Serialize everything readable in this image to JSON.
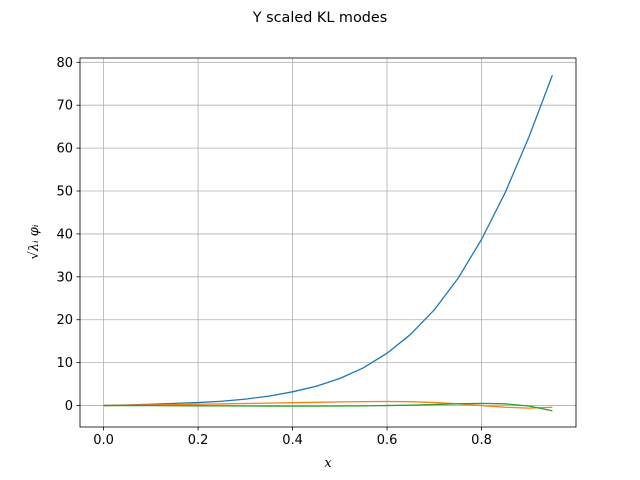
{
  "chart_data": {
    "type": "line",
    "title": "Y scaled KL modes",
    "xlabel": "x",
    "ylabel": "√λᵢ φᵢ",
    "xlim": [
      -0.05,
      1.0
    ],
    "ylim": [
      -5,
      81
    ],
    "grid": true,
    "xticks": [
      0.0,
      0.2,
      0.4,
      0.6,
      0.8
    ],
    "xtick_labels": [
      "0.0",
      "0.2",
      "0.4",
      "0.6",
      "0.8"
    ],
    "yticks": [
      0,
      10,
      20,
      30,
      40,
      50,
      60,
      70,
      80
    ],
    "ytick_labels": [
      "0",
      "10",
      "20",
      "30",
      "40",
      "50",
      "60",
      "70",
      "80"
    ],
    "x": [
      0.0,
      0.05,
      0.1,
      0.15,
      0.2,
      0.25,
      0.3,
      0.35,
      0.4,
      0.45,
      0.5,
      0.55,
      0.6,
      0.65,
      0.7,
      0.75,
      0.8,
      0.85,
      0.9,
      0.95
    ],
    "series": [
      {
        "color": "#1f77b4",
        "values": [
          0.0,
          0.15,
          0.3,
          0.5,
          0.7,
          1.0,
          1.5,
          2.2,
          3.2,
          4.5,
          6.3,
          8.8,
          12.2,
          16.6,
          22.3,
          29.6,
          38.7,
          49.6,
          62.5,
          77.0
        ]
      },
      {
        "color": "#ff7f0e",
        "values": [
          0.0,
          0.08,
          0.15,
          0.22,
          0.3,
          0.38,
          0.47,
          0.56,
          0.66,
          0.76,
          0.85,
          0.92,
          0.95,
          0.9,
          0.7,
          0.4,
          0.0,
          -0.4,
          -0.6,
          -0.4
        ]
      },
      {
        "color": "#2ca02c",
        "values": [
          0.0,
          -0.01,
          -0.02,
          -0.04,
          -0.06,
          -0.08,
          -0.1,
          -0.12,
          -0.13,
          -0.13,
          -0.11,
          -0.07,
          0.0,
          0.1,
          0.25,
          0.4,
          0.5,
          0.4,
          -0.1,
          -1.2
        ]
      }
    ]
  }
}
